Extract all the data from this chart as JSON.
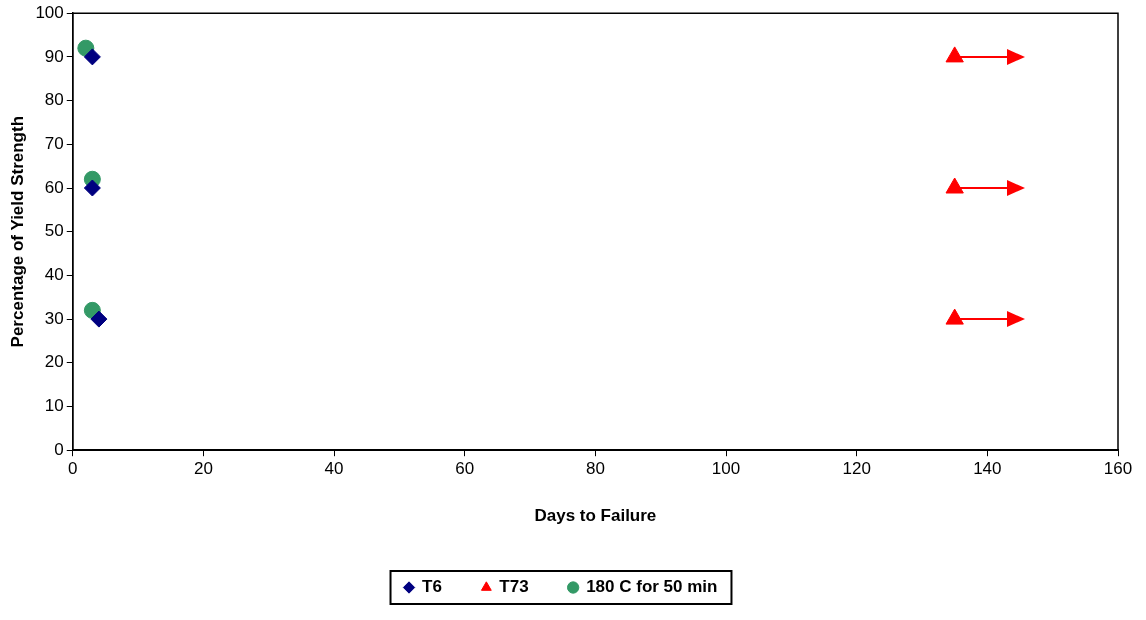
{
  "chart_data": {
    "type": "scatter",
    "xlabel": "Days to Failure",
    "ylabel": "Percentage of Yield Strength",
    "xlim": [
      0,
      160
    ],
    "xticks": [
      0,
      20,
      40,
      60,
      80,
      100,
      120,
      140,
      160
    ],
    "ylim": [
      0,
      100
    ],
    "yticks": [
      0,
      10,
      20,
      30,
      40,
      50,
      60,
      70,
      80,
      90,
      100
    ],
    "grid": false,
    "legend": "bottom",
    "series": [
      {
        "name": "T6",
        "color": "#000080",
        "marker": "diamond",
        "x": [
          3,
          3,
          4
        ],
        "values": [
          90,
          60,
          30
        ]
      },
      {
        "name": "T73",
        "color": "#ff0000",
        "marker": "triangle",
        "x": [
          135,
          135,
          135
        ],
        "values": [
          90,
          60,
          30
        ]
      },
      {
        "name": "180 C for 50 min",
        "color": "#339966",
        "marker": "circle",
        "x": [
          2,
          3,
          3
        ],
        "values": [
          92,
          62,
          32
        ]
      }
    ]
  }
}
